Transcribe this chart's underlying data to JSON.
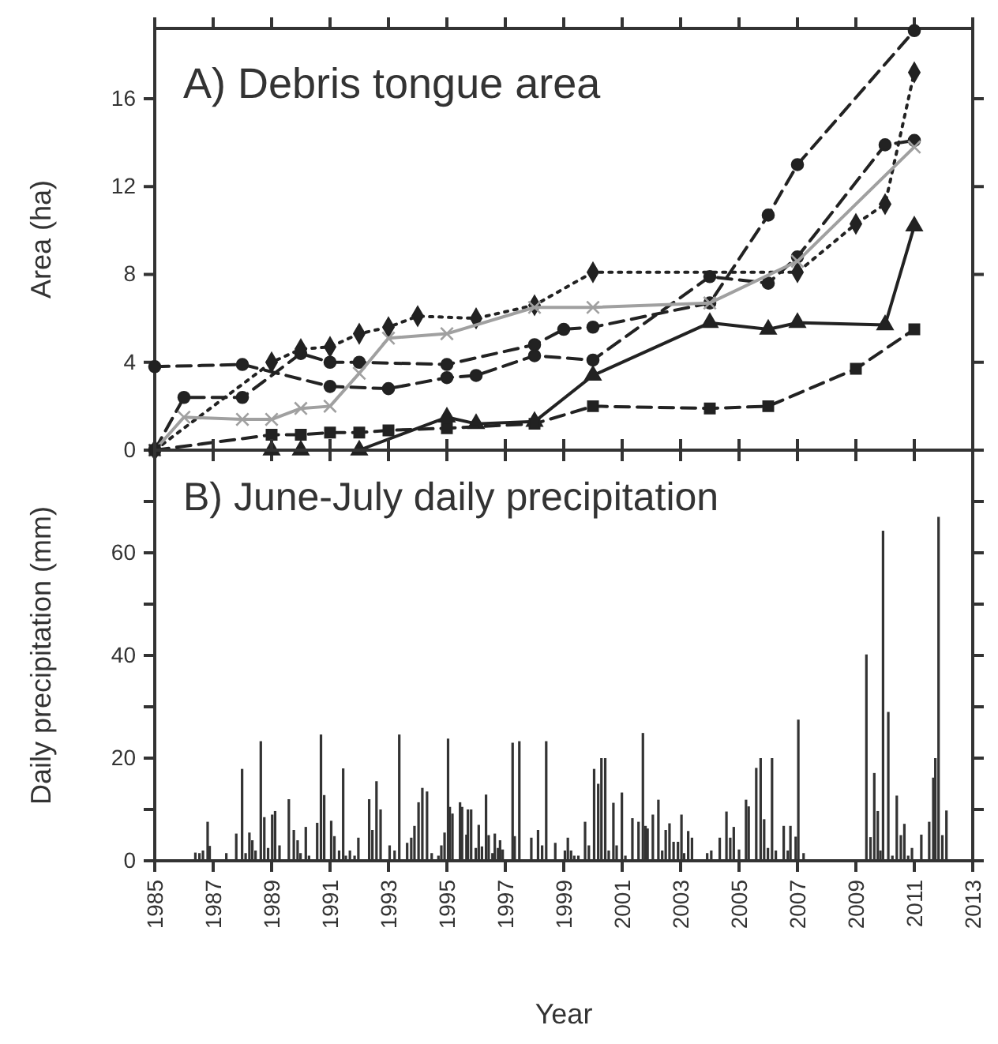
{
  "chart_data": [
    {
      "type": "line",
      "title": "A) Debris tongue area",
      "ylabel": "Area (ha)",
      "xlim": [
        1985,
        2013
      ],
      "xticks": [
        1985,
        1987,
        1989,
        1991,
        1993,
        1995,
        1997,
        1999,
        2001,
        2003,
        2005,
        2007,
        2009,
        2011,
        2013
      ],
      "ylim": [
        0,
        19.2
      ],
      "yticks": [
        0,
        4,
        8,
        12,
        16
      ],
      "tick_labels": "y",
      "series": [
        {
          "color": "#222222",
          "marker": "circle",
          "line_style": "dashed",
          "x": [
            1985,
            1988,
            1991,
            1993,
            1995,
            1996,
            1998,
            2000,
            2004,
            2006,
            2007,
            2010,
            2011
          ],
          "values": [
            3.8,
            3.9,
            2.9,
            2.8,
            3.3,
            3.4,
            4.3,
            4.1,
            7.9,
            7.6,
            8.8,
            13.9,
            14.1
          ]
        },
        {
          "color": "#222222",
          "marker": "circle",
          "line_style": "dashed",
          "x": [
            1985,
            1986,
            1988,
            1990,
            1991,
            1992,
            1995,
            1998,
            1999,
            2000,
            2004,
            2006,
            2007,
            2011
          ],
          "values": [
            0,
            2.4,
            2.4,
            4.4,
            4.0,
            4.0,
            3.9,
            4.8,
            5.5,
            5.6,
            6.7,
            10.7,
            13.0,
            19.1
          ]
        },
        {
          "color": "#222222",
          "marker": "diamond",
          "line_style": "dotted",
          "x": [
            1985,
            1989,
            1990,
            1991,
            1992,
            1993,
            1994,
            1996,
            1998,
            2000,
            2007,
            2009,
            2010,
            2011
          ],
          "values": [
            0,
            4.0,
            4.6,
            4.7,
            5.3,
            5.6,
            6.1,
            6.0,
            6.6,
            8.1,
            8.1,
            10.3,
            11.2,
            17.2
          ]
        },
        {
          "color": "#a0a0a0",
          "marker": "cross",
          "line_style": "solid",
          "x": [
            1985,
            1986,
            1988,
            1989,
            1990,
            1991,
            1992,
            1993,
            1995,
            1998,
            2000,
            2004,
            2007,
            2011
          ],
          "values": [
            0,
            1.5,
            1.4,
            1.4,
            1.9,
            2.0,
            3.5,
            5.1,
            5.3,
            6.5,
            6.5,
            6.7,
            8.6,
            13.8
          ]
        },
        {
          "color": "#222222",
          "marker": "triangle",
          "line_style": "solid",
          "x": [
            1989,
            1990,
            1992,
            1995,
            1996,
            1998,
            2000,
            2004,
            2006,
            2007,
            2010,
            2011
          ],
          "values": [
            0,
            0,
            0,
            1.5,
            1.2,
            1.3,
            3.4,
            5.8,
            5.5,
            5.8,
            5.7,
            10.2
          ]
        },
        {
          "color": "#222222",
          "marker": "square",
          "line_style": "dashed",
          "x": [
            1985,
            1989,
            1990,
            1991,
            1992,
            1993,
            1995,
            1998,
            2000,
            2004,
            2006,
            2009,
            2011
          ],
          "values": [
            0,
            0.7,
            0.7,
            0.8,
            0.8,
            0.9,
            1.0,
            1.2,
            2.0,
            1.9,
            2.0,
            3.7,
            5.5
          ]
        }
      ]
    },
    {
      "type": "bar",
      "title": "B) June-July daily precipitation",
      "xlabel": "Year",
      "ylabel": "Daily precipitation (mm)",
      "xlim": [
        1985,
        2013
      ],
      "xticks": [
        1985,
        1987,
        1989,
        1991,
        1993,
        1995,
        1997,
        1999,
        2001,
        2003,
        2005,
        2007,
        2009,
        2011,
        2013
      ],
      "ylim": [
        0,
        80
      ],
      "yticks": [
        0,
        {
          "value": 10,
          "label": null
        },
        20,
        {
          "value": 30,
          "label": null
        },
        40,
        {
          "value": 50,
          "label": null
        },
        60,
        {
          "value": 70,
          "label": null
        }
      ],
      "series": [
        {
          "color": "#333333",
          "x": [
            1986.39,
            1986.53,
            1986.65,
            1986.81,
            1986.88,
            1987.45,
            1987.79,
            1987.99,
            1988.11,
            1988.24,
            1988.34,
            1988.45,
            1988.63,
            1988.75,
            1988.88,
            1989.02,
            1989.12,
            1989.27,
            1989.59,
            1989.76,
            1989.89,
            1989.99,
            1990.17,
            1990.28,
            1990.56,
            1990.69,
            1990.8,
            1991.04,
            1991.15,
            1991.31,
            1991.45,
            1991.54,
            1991.68,
            1991.84,
            1991.97,
            1992.34,
            1992.45,
            1992.59,
            1992.73,
            1993.04,
            1993.21,
            1993.37,
            1993.64,
            1993.78,
            1993.89,
            1994.03,
            1994.16,
            1994.32,
            1994.48,
            1994.71,
            1994.81,
            1994.92,
            1995.04,
            1995.1,
            1995.19,
            1995.45,
            1995.52,
            1995.67,
            1995.72,
            1995.83,
            1995.99,
            1996.09,
            1996.2,
            1996.34,
            1996.43,
            1996.56,
            1996.64,
            1996.75,
            1996.82,
            1996.91,
            1997.25,
            1997.32,
            1997.48,
            1997.89,
            1998.12,
            1998.26,
            1998.4,
            1998.71,
            1999.04,
            1999.14,
            1999.25,
            1999.36,
            1999.5,
            1999.73,
            1999.86,
            2000.04,
            2000.18,
            2000.29,
            2000.42,
            2000.54,
            2000.7,
            2000.81,
            2000.99,
            2001.11,
            2001.35,
            2001.56,
            2001.71,
            2001.8,
            2001.87,
            2002.05,
            2002.24,
            2002.37,
            2002.49,
            2002.62,
            2002.76,
            2002.91,
            2003.03,
            2003.12,
            2003.26,
            2003.39,
            2003.91,
            2004.05,
            2004.34,
            2004.57,
            2004.7,
            2004.82,
            2005,
            2005.24,
            2005.33,
            2005.59,
            2005.74,
            2005.86,
            2005.99,
            2006.13,
            2006.26,
            2006.53,
            2006.67,
            2006.76,
            2006.94,
            2007.03,
            2007.21,
            2009.36,
            2009.5,
            2009.63,
            2009.75,
            2009.84,
            2009.93,
            2010.11,
            2010.25,
            2010.4,
            2010.54,
            2010.66,
            2010.79,
            2010.92,
            2011.24,
            2011.51,
            2011.65,
            2011.72,
            2011.83,
            2011.96,
            2012.1
          ],
          "values": [
            1.6,
            1.5,
            2,
            7.6,
            2.9,
            1.5,
            5.3,
            17.9,
            1.5,
            5.5,
            4,
            2,
            23.3,
            8.5,
            2.5,
            9,
            9.7,
            3,
            12,
            6,
            4,
            1.5,
            6.6,
            1,
            7.4,
            24.6,
            12.8,
            7.8,
            4.8,
            2,
            18,
            1,
            2,
            1,
            4.5,
            12,
            6,
            15.5,
            10,
            3,
            2,
            24.6,
            3.5,
            4.5,
            6.8,
            11.4,
            14.2,
            13.5,
            1.5,
            1,
            3,
            5.5,
            23.8,
            10.5,
            9.2,
            11.4,
            10.5,
            5.1,
            10,
            10,
            2.5,
            7,
            2.8,
            12.9,
            5,
            1.5,
            5.3,
            2.5,
            4,
            2.2,
            23,
            4.8,
            23.3,
            4.5,
            6,
            3,
            23.3,
            3.5,
            2,
            4.5,
            2,
            1,
            1,
            7.6,
            3,
            17.9,
            15,
            20,
            20,
            2,
            11.3,
            3,
            13.3,
            1,
            8.3,
            7.6,
            24.9,
            6.8,
            6.3,
            9,
            11.9,
            2,
            6,
            7.3,
            3.7,
            3.7,
            9,
            1.5,
            5.8,
            4.5,
            1.5,
            2,
            4.5,
            9.6,
            4.5,
            6.6,
            2.2,
            11.9,
            10.6,
            18.1,
            20,
            8.1,
            2.5,
            20,
            2,
            6.8,
            2,
            6.8,
            4.7,
            27.5,
            1.5,
            40.2,
            4.6,
            17.1,
            9.7,
            2,
            64.3,
            29,
            1,
            12.7,
            5,
            7.2,
            1,
            2.5,
            5.1,
            7.6,
            16.2,
            20,
            67,
            5,
            9.8
          ]
        }
      ]
    }
  ]
}
